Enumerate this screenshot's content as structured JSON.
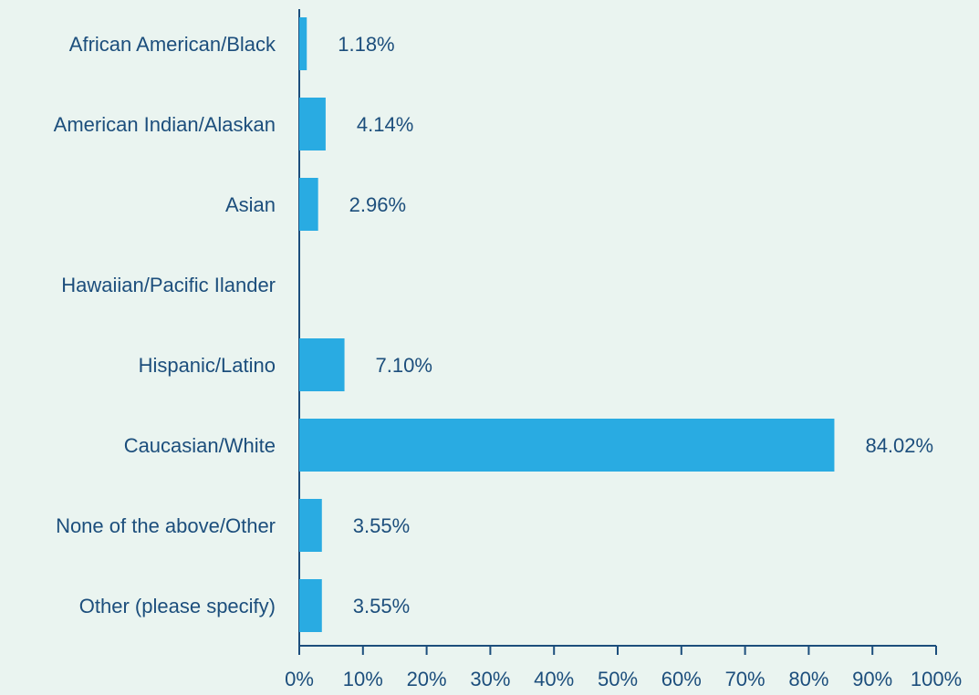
{
  "chart_data": {
    "type": "barh",
    "categories": [
      "African American/Black",
      "American Indian/Alaskan",
      "Asian",
      "Hawaiian/Pacific Ilander",
      "Hispanic/Latino",
      "Caucasian/White",
      "None of the above/Other",
      "Other (please specify)"
    ],
    "values": [
      1.18,
      4.14,
      2.96,
      null,
      7.1,
      84.02,
      3.55,
      3.55
    ],
    "value_labels": [
      "1.18%",
      "4.14%",
      "2.96%",
      null,
      "7.10%",
      "84.02%",
      "3.55%",
      "3.55%"
    ],
    "color": "#29abe2",
    "xlim": [
      0,
      100
    ],
    "xticks": [
      {
        "value": 0,
        "label": "0%"
      },
      {
        "value": 10,
        "label": "10%"
      },
      {
        "value": 20,
        "label": "20%"
      },
      {
        "value": 30,
        "label": "30%"
      },
      {
        "value": 40,
        "label": "40%"
      },
      {
        "value": 50,
        "label": "50%"
      },
      {
        "value": 60,
        "label": "60%"
      },
      {
        "value": 70,
        "label": "70%"
      },
      {
        "value": 80,
        "label": "80%"
      },
      {
        "value": 90,
        "label": "90%"
      },
      {
        "value": 100,
        "label": "100%"
      }
    ],
    "grid": false
  }
}
